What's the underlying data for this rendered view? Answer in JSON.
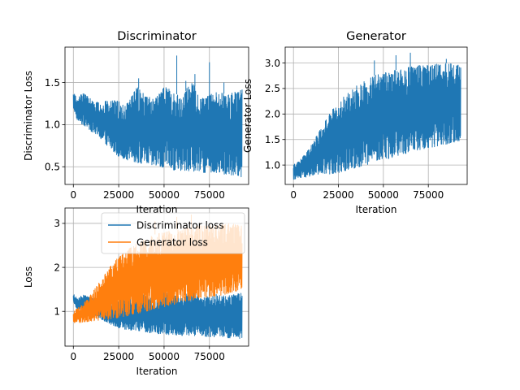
{
  "chart_data": [
    {
      "type": "line",
      "id": "disc",
      "title": "Discriminator",
      "xlabel": "Iteration",
      "ylabel": "Discriminator Loss",
      "xlim": [
        -4600,
        96600
      ],
      "ylim": [
        0.29,
        1.92
      ],
      "xticks": [
        0,
        25000,
        50000,
        75000
      ],
      "xtick_labels": [
        "0",
        "25000",
        "50000",
        "75000"
      ],
      "yticks": [
        0.5,
        1.0,
        1.5
      ],
      "ytick_labels": [
        "0.5",
        "1.0",
        "1.5"
      ],
      "grid": true,
      "series": [
        {
          "color": "#1f77b4",
          "x": [
            0,
            2000,
            5000,
            10000,
            15000,
            20000,
            25000,
            30000,
            35000,
            40000,
            45000,
            50000,
            55000,
            60000,
            65000,
            70000,
            75000,
            80000,
            85000,
            90000,
            93000
          ],
          "upper": [
            1.4,
            1.3,
            1.38,
            1.3,
            1.25,
            1.3,
            1.28,
            1.25,
            1.45,
            1.35,
            1.3,
            1.45,
            1.4,
            1.3,
            1.55,
            1.3,
            1.35,
            1.4,
            1.35,
            1.4,
            1.42
          ],
          "lower": [
            1.2,
            1.06,
            1.0,
            0.92,
            0.83,
            0.72,
            0.62,
            0.58,
            0.55,
            0.52,
            0.5,
            0.48,
            0.46,
            0.45,
            0.45,
            0.44,
            0.42,
            0.42,
            0.4,
            0.38,
            0.38
          ],
          "spikes": [
            [
              57000,
              1.82
            ],
            [
              75000,
              1.74
            ],
            [
              67000,
              1.6
            ],
            [
              36000,
              1.55
            ],
            [
              62000,
              1.52
            ],
            [
              83000,
              1.5
            ]
          ]
        }
      ]
    },
    {
      "type": "line",
      "id": "gen",
      "title": "Generator",
      "xlabel": "Iteration",
      "ylabel": "Generator Loss",
      "xlim": [
        -4600,
        96600
      ],
      "ylim": [
        0.62,
        3.31
      ],
      "xticks": [
        0,
        25000,
        50000,
        75000
      ],
      "xtick_labels": [
        "0",
        "25000",
        "50000",
        "75000"
      ],
      "yticks": [
        1.0,
        1.5,
        2.0,
        2.5,
        3.0
      ],
      "ytick_labels": [
        "1.0",
        "1.5",
        "2.0",
        "2.5",
        "3.0"
      ],
      "grid": true,
      "series": [
        {
          "color": "#1f77b4",
          "x": [
            0,
            5000,
            10000,
            15000,
            20000,
            25000,
            30000,
            35000,
            40000,
            45000,
            50000,
            55000,
            60000,
            65000,
            70000,
            75000,
            80000,
            85000,
            90000,
            93000
          ],
          "upper": [
            1.0,
            1.15,
            1.4,
            1.7,
            2.0,
            2.25,
            2.4,
            2.55,
            2.65,
            2.75,
            2.8,
            2.85,
            2.88,
            2.92,
            2.95,
            2.95,
            2.98,
            3.0,
            2.98,
            2.95
          ],
          "lower": [
            0.72,
            0.75,
            0.78,
            0.8,
            0.82,
            0.85,
            0.9,
            0.95,
            1.0,
            1.05,
            1.1,
            1.15,
            1.2,
            1.25,
            1.3,
            1.32,
            1.35,
            1.4,
            1.45,
            1.48
          ],
          "spikes": [
            [
              65000,
              3.2
            ],
            [
              57000,
              3.15
            ],
            [
              45000,
              3.05
            ],
            [
              85000,
              3.08
            ]
          ]
        }
      ]
    },
    {
      "type": "line",
      "id": "combined",
      "title": "",
      "xlabel": "Iteration",
      "ylabel": "Loss",
      "xlim": [
        -4600,
        96600
      ],
      "ylim": [
        0.21,
        3.35
      ],
      "xticks": [
        0,
        25000,
        50000,
        75000
      ],
      "xtick_labels": [
        "0",
        "25000",
        "50000",
        "75000"
      ],
      "yticks": [
        1,
        2,
        3
      ],
      "ytick_labels": [
        "1",
        "2",
        "3"
      ],
      "grid": true,
      "legend": "upper-right",
      "series": [
        {
          "name": "Discriminator loss",
          "color": "#1f77b4",
          "x": [
            0,
            2000,
            5000,
            10000,
            15000,
            20000,
            25000,
            30000,
            35000,
            40000,
            45000,
            50000,
            55000,
            60000,
            65000,
            70000,
            75000,
            80000,
            85000,
            90000,
            93000
          ],
          "upper": [
            1.4,
            1.3,
            1.38,
            1.3,
            1.25,
            1.3,
            1.28,
            1.25,
            1.45,
            1.35,
            1.3,
            1.45,
            1.4,
            1.3,
            1.55,
            1.3,
            1.35,
            1.4,
            1.35,
            1.4,
            1.42
          ],
          "lower": [
            1.2,
            1.06,
            1.0,
            0.92,
            0.83,
            0.72,
            0.62,
            0.58,
            0.55,
            0.52,
            0.5,
            0.48,
            0.46,
            0.45,
            0.45,
            0.44,
            0.42,
            0.42,
            0.4,
            0.38,
            0.38
          ],
          "spikes": [
            [
              57000,
              1.82
            ],
            [
              75000,
              1.74
            ],
            [
              67000,
              1.6
            ]
          ]
        },
        {
          "name": "Generator loss",
          "color": "#ff7f0e",
          "x": [
            0,
            5000,
            10000,
            15000,
            20000,
            25000,
            30000,
            35000,
            40000,
            45000,
            50000,
            55000,
            60000,
            65000,
            70000,
            75000,
            80000,
            85000,
            90000,
            93000
          ],
          "upper": [
            1.0,
            1.15,
            1.4,
            1.7,
            2.0,
            2.25,
            2.4,
            2.55,
            2.65,
            2.75,
            2.8,
            2.85,
            2.88,
            2.92,
            2.95,
            2.95,
            2.98,
            3.0,
            2.98,
            2.95
          ],
          "lower": [
            0.72,
            0.75,
            0.78,
            0.8,
            0.82,
            0.85,
            0.9,
            0.95,
            1.0,
            1.05,
            1.1,
            1.15,
            1.2,
            1.25,
            1.3,
            1.32,
            1.35,
            1.4,
            1.45,
            1.48
          ],
          "spikes": [
            [
              65000,
              3.2
            ],
            [
              57000,
              3.15
            ],
            [
              45000,
              3.05
            ]
          ]
        }
      ]
    }
  ]
}
